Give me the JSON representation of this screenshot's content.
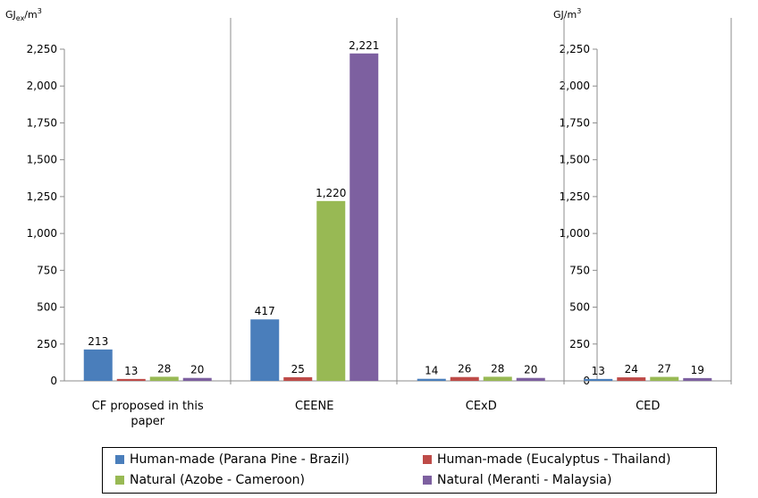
{
  "chart_data": {
    "type": "bar",
    "units": {
      "left": "GJex/m3",
      "right": "GJ/m3"
    },
    "categories": [
      "CF proposed in this paper",
      "CEENE",
      "CExD",
      "CED"
    ],
    "category_lines": [
      [
        "CF proposed in this",
        "paper"
      ],
      [
        "CEENE"
      ],
      [
        "CExD"
      ],
      [
        "CED"
      ]
    ],
    "series": [
      {
        "name": "Human-made (Parana Pine - Brazil)",
        "color": "#4a7ebb",
        "values": [
          213,
          417,
          14,
          13
        ]
      },
      {
        "name": "Human-made (Eucalyptus - Thailand)",
        "color": "#be4b48",
        "values": [
          13,
          25,
          26,
          24
        ]
      },
      {
        "name": "Natural (Azobe - Cameroon)",
        "color": "#98b954",
        "values": [
          28,
          1220,
          28,
          27
        ]
      },
      {
        "name": "Natural (Meranti - Malaysia)",
        "color": "#7d60a0",
        "values": [
          20,
          2221,
          20,
          19
        ]
      }
    ],
    "data_labels": [
      [
        "213",
        "13",
        "28",
        "20"
      ],
      [
        "417",
        "25",
        "1,220",
        "2,221"
      ],
      [
        "14",
        "26",
        "28",
        "20"
      ],
      [
        "13",
        "24",
        "27",
        "19"
      ]
    ],
    "ylim": [
      0,
      2250
    ],
    "yticks": [
      0,
      250,
      500,
      750,
      1000,
      1250,
      1500,
      1750,
      2000,
      2250
    ],
    "ytick_labels": [
      "0",
      "250",
      "500",
      "750",
      "1,000",
      "1,250",
      "1,500",
      "1,750",
      "2,000",
      "2,250"
    ],
    "legend_position": "bottom",
    "grid": false
  }
}
